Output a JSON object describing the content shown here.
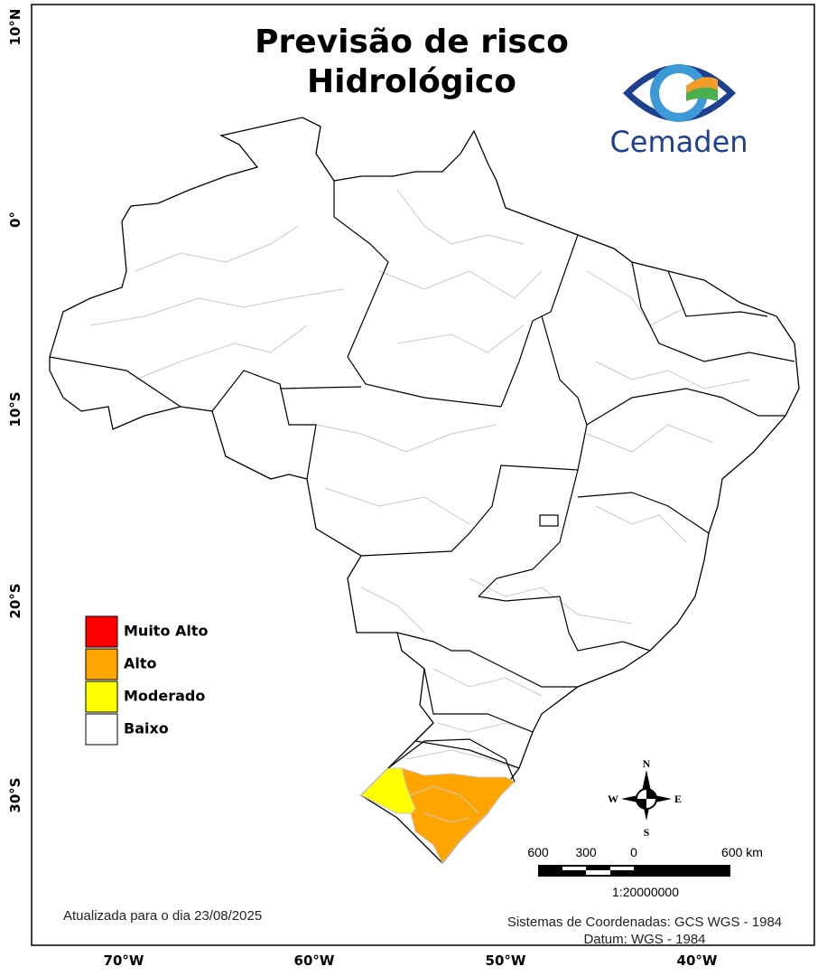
{
  "header": {
    "title_lines": [
      "Previsão de risco",
      "Hidrológico"
    ]
  },
  "logo": {
    "text": "Cemaden"
  },
  "legend": {
    "items": [
      {
        "label": "Muito Alto",
        "color": "#ff0000"
      },
      {
        "label": "Alto",
        "color": "#ffa500"
      },
      {
        "label": "Moderado",
        "color": "#ffff00"
      },
      {
        "label": "Baixo",
        "color": "#ffffff"
      }
    ]
  },
  "axes": {
    "latitude_labels": [
      "10°N",
      "0°",
      "10°S",
      "20°S",
      "30°S"
    ],
    "longitude_labels": [
      "70°W",
      "60°W",
      "50°W",
      "40°W"
    ]
  },
  "compass": {
    "north": "N",
    "east": "E",
    "south": "S",
    "west": "W"
  },
  "scale_bar": {
    "labels": [
      "600",
      "300",
      "0",
      "600 km"
    ],
    "ratio": "1:20000000"
  },
  "footer": {
    "updated": "Atualizada para o dia 23/08/2025",
    "crs": "Sistemas de Coordenadas: GCS WGS - 1984",
    "datum": "Datum: WGS - 1984"
  }
}
